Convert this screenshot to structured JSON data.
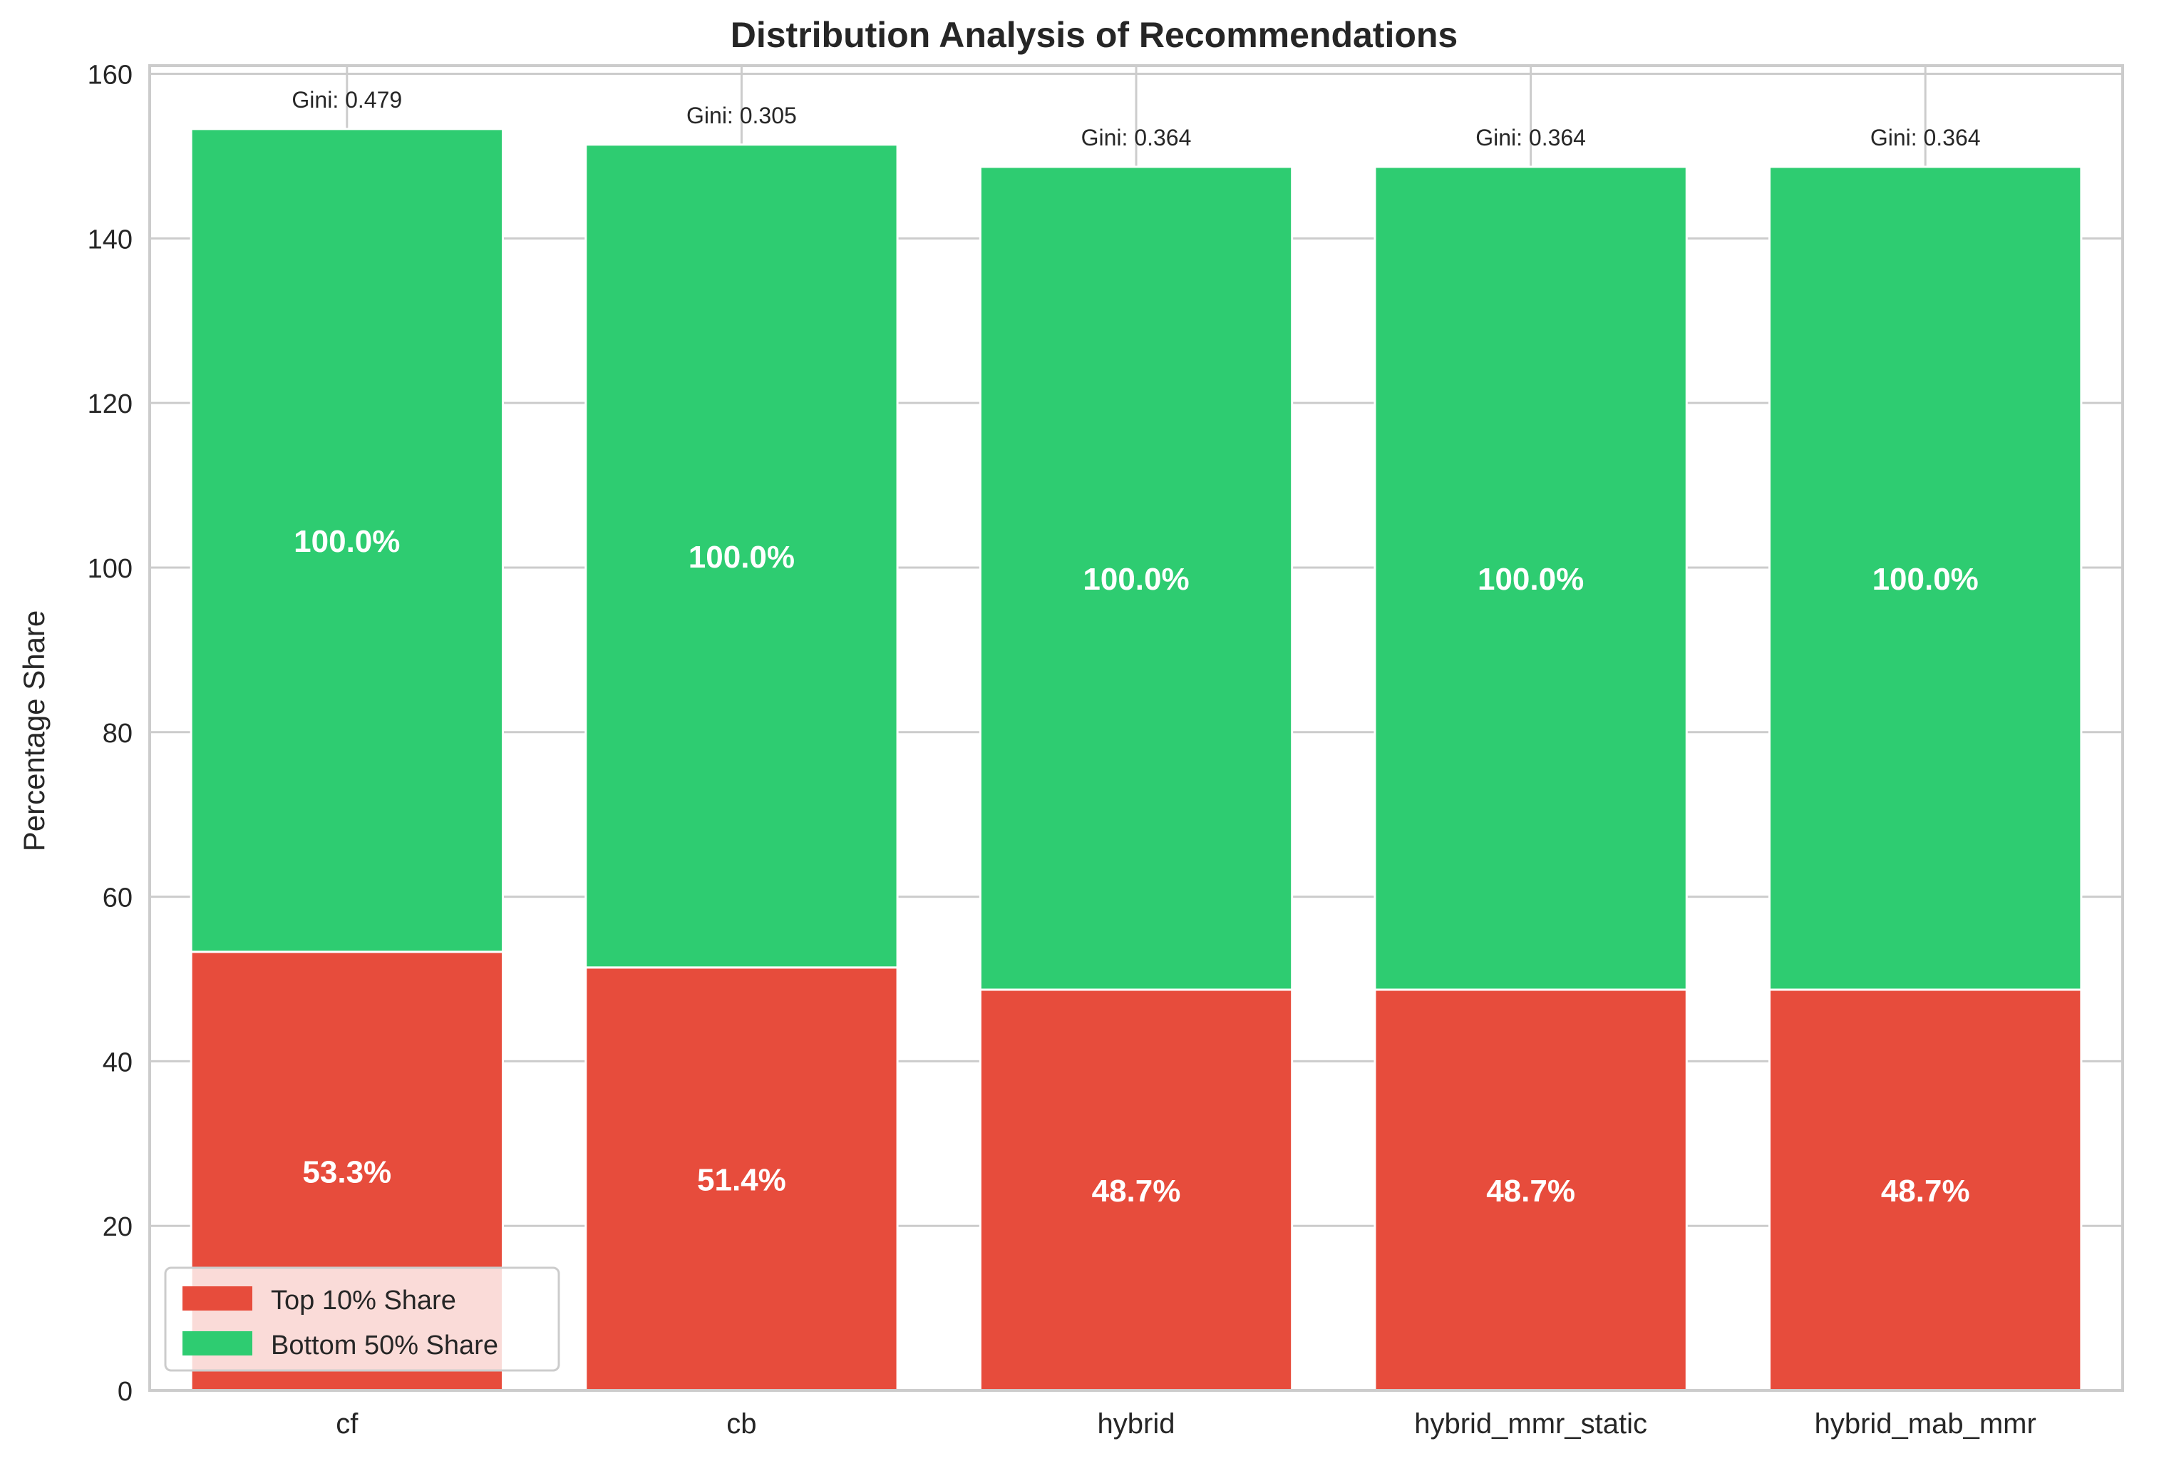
{
  "chart_data": {
    "type": "bar",
    "stacked": true,
    "title": "Distribution Analysis of Recommendations",
    "xlabel": "",
    "ylabel": "Percentage Share",
    "categories": [
      "cf",
      "cb",
      "hybrid",
      "hybrid_mmr_static",
      "hybrid_mab_mmr"
    ],
    "series": [
      {
        "name": "Top 10% Share",
        "color": "#e74c3c",
        "values": [
          53.3,
          51.4,
          48.7,
          48.7,
          48.7
        ],
        "labels": [
          "53.3%",
          "51.4%",
          "48.7%",
          "48.7%",
          "48.7%"
        ]
      },
      {
        "name": "Bottom 50% Share",
        "color": "#2ecc71",
        "values": [
          100.0,
          100.0,
          100.0,
          100.0,
          100.0
        ],
        "labels": [
          "100.0%",
          "100.0%",
          "100.0%",
          "100.0%",
          "100.0%"
        ]
      }
    ],
    "annotations": [
      "Gini: 0.479",
      "Gini: 0.305",
      "Gini: 0.364",
      "Gini: 0.364",
      "Gini: 0.364"
    ],
    "ylim": [
      0,
      161
    ],
    "yticks": [
      0,
      20,
      40,
      60,
      80,
      100,
      120,
      140,
      160
    ],
    "grid": true,
    "legend_position": "lower-left"
  }
}
